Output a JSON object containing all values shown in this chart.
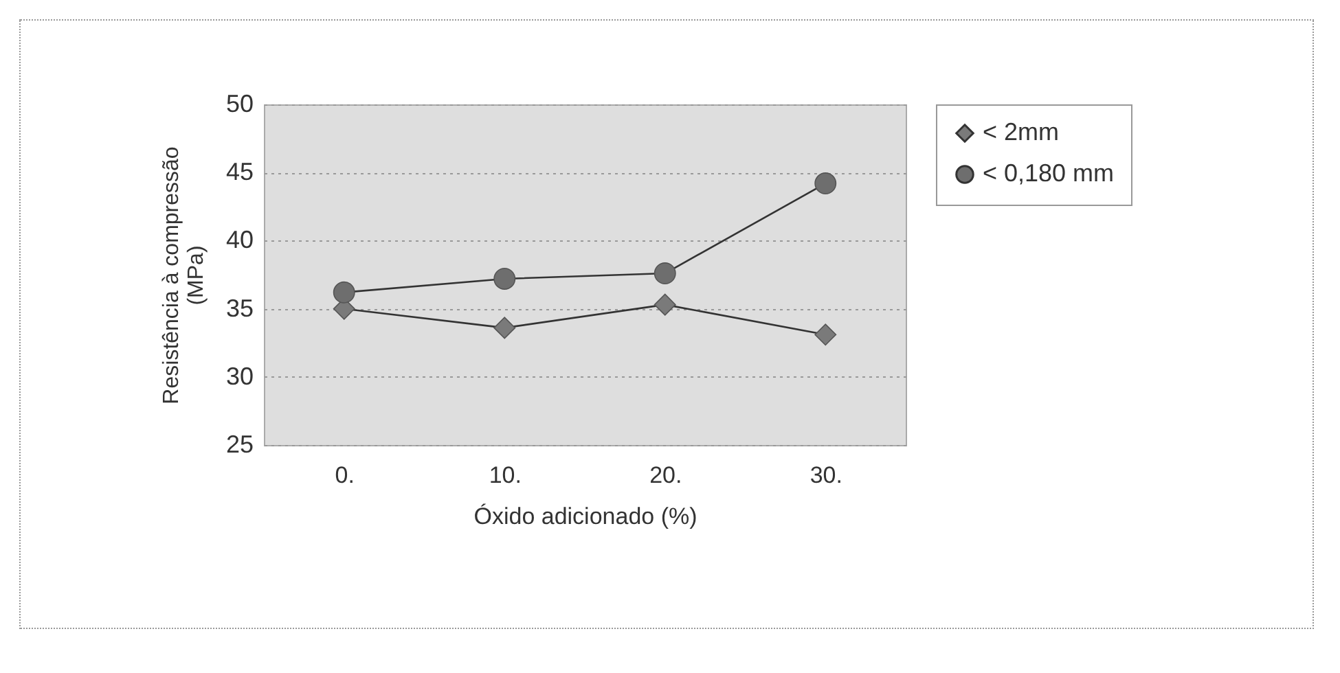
{
  "chart_data": {
    "type": "line",
    "xlabel": "Óxido adicionado  (%)",
    "ylabel": "Resistência à compressão (MPa)",
    "categories": [
      "0.",
      "10.",
      "20.",
      "30."
    ],
    "series": [
      {
        "name": "< 2mm",
        "color": "#7a7a7a",
        "marker": "diamond",
        "values": [
          35.0,
          33.6,
          35.3,
          33.1
        ]
      },
      {
        "name": "< 0,180 mm",
        "color": "#6e6e6e",
        "marker": "circle",
        "values": [
          36.2,
          37.2,
          37.6,
          44.2
        ]
      }
    ],
    "ylim": [
      25,
      50
    ],
    "yticks": [
      25,
      30,
      35,
      40,
      45,
      50
    ],
    "grid": "y",
    "legend": "right",
    "line_style": "solid"
  }
}
